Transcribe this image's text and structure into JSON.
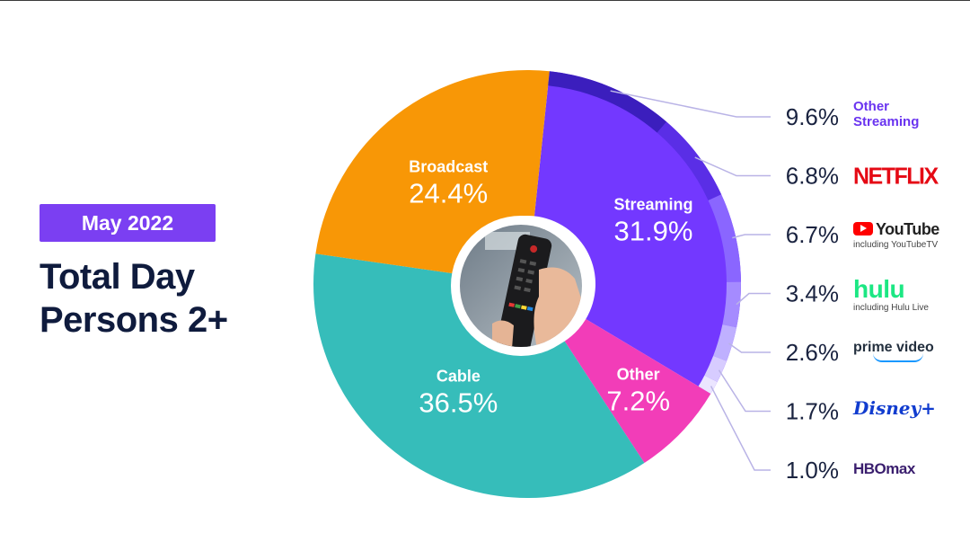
{
  "badge": {
    "label": "May 2022"
  },
  "heading": {
    "line1": "Total Day",
    "line2": "Persons 2+"
  },
  "chart_data": {
    "type": "pie",
    "title": "",
    "categories": [
      "Streaming",
      "Other",
      "Cable",
      "Broadcast"
    ],
    "values": [
      31.9,
      7.2,
      36.5,
      24.4
    ],
    "value_labels": [
      "31.9%",
      "7.2%",
      "36.5%",
      "24.4%"
    ],
    "colors": [
      "#7338ff",
      "#f23db8",
      "#36bdba",
      "#f89706"
    ],
    "streaming_breakdown": {
      "labels": [
        "Other Streaming",
        "Netflix",
        "YouTube",
        "Hulu",
        "Prime Video",
        "Disney+",
        "HBO Max"
      ],
      "brand_text": [
        "Other Streaming",
        "NETFLIX",
        "YouTube",
        "hulu",
        "prime video",
        "Disney+",
        "HBOmax"
      ],
      "subtitles": [
        "",
        "",
        "including YouTubeTV",
        "including Hulu Live",
        "",
        "",
        ""
      ],
      "values": [
        9.6,
        6.8,
        6.7,
        3.4,
        2.6,
        1.7,
        1.0
      ],
      "value_labels": [
        "9.6%",
        "6.8%",
        "6.7%",
        "3.4%",
        "2.6%",
        "1.7%",
        "1.0%"
      ],
      "ring_colors": [
        "#3b1ebd",
        "#5a2ee6",
        "#8a66ff",
        "#a58bff",
        "#bfb0ff",
        "#d7ccff",
        "#ebe5ff"
      ],
      "brand_colors": [
        "#6a34f0",
        "#e50914",
        "#222222",
        "#1ce783",
        "#1a98ff",
        "#113ccf",
        "#3a1e6e"
      ]
    },
    "center_image": "tv-remote-in-hand"
  }
}
